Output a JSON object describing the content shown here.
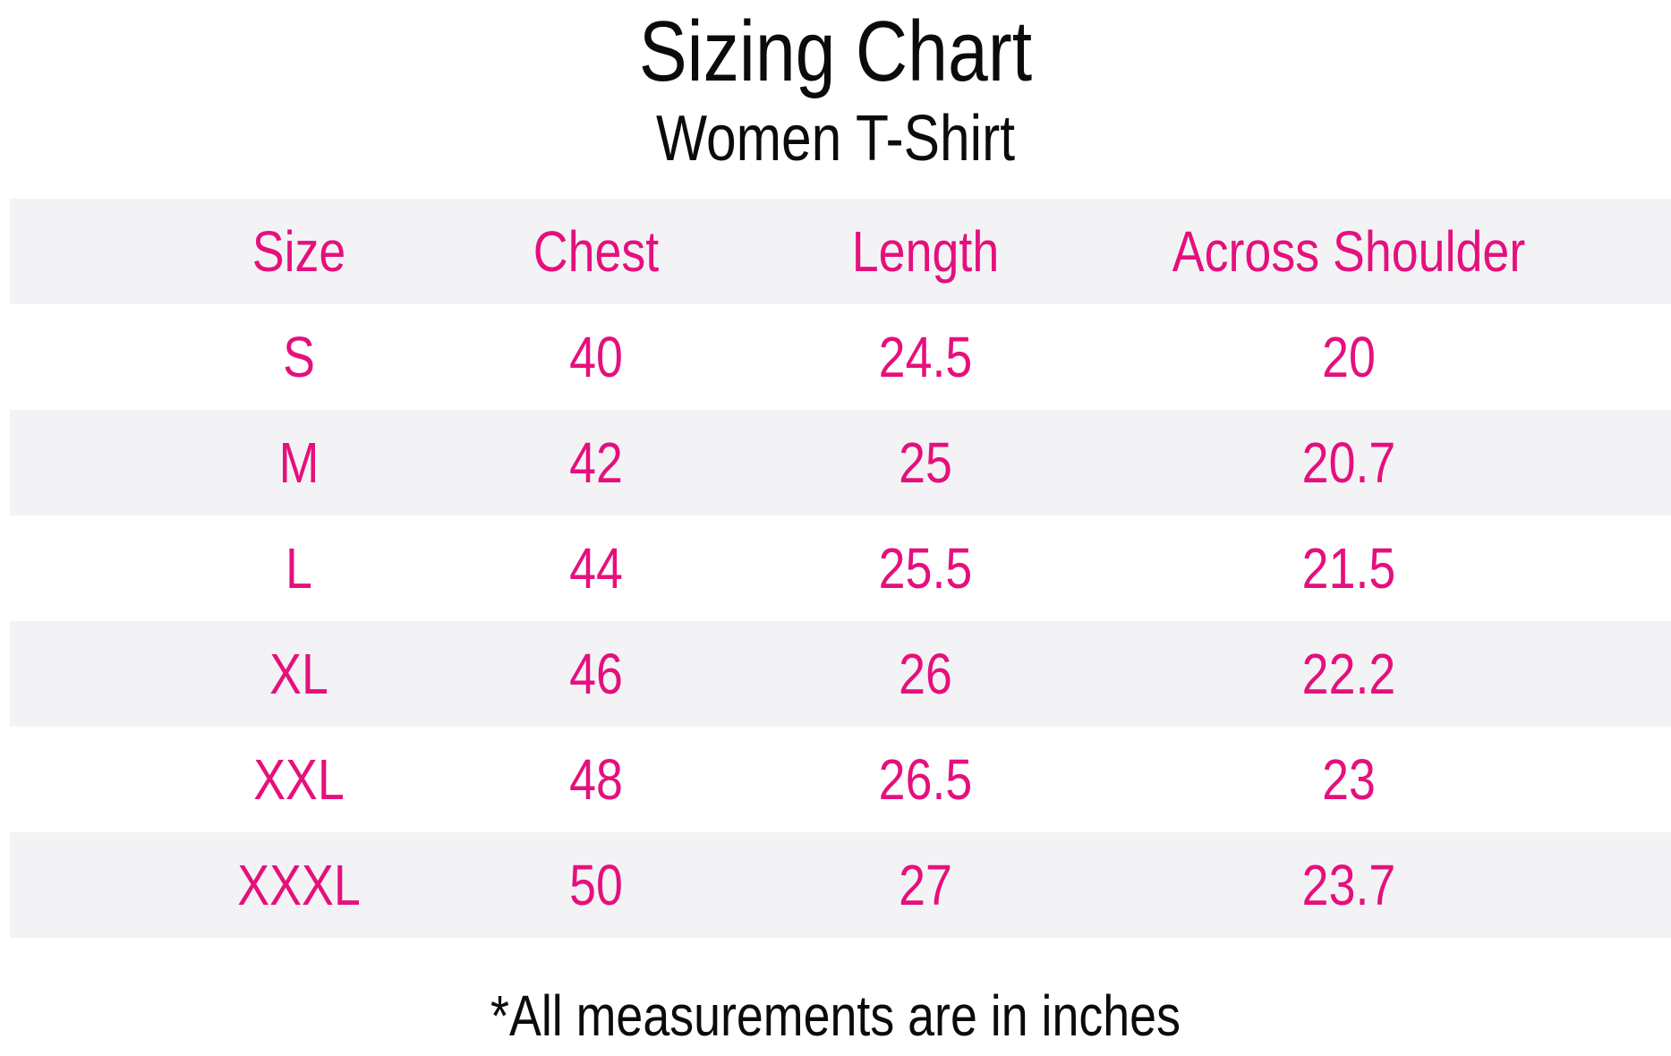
{
  "colors": {
    "accent_pink": "#e5107d",
    "stripe_grey": "#f3f3f5",
    "text_black": "#0b0b0b",
    "background": "#ffffff"
  },
  "chart_data": {
    "type": "table",
    "title": "Sizing Chart",
    "subtitle": "Women T-Shirt",
    "columns": [
      "Size",
      "Chest",
      "Length",
      "Across Shoulder"
    ],
    "rows": [
      [
        "S",
        "40",
        "24.5",
        "20"
      ],
      [
        "M",
        "42",
        "25",
        "20.7"
      ],
      [
        "L",
        "44",
        "25.5",
        "21.5"
      ],
      [
        "XL",
        "46",
        "26",
        "22.2"
      ],
      [
        "XXL",
        "48",
        "26.5",
        "23"
      ],
      [
        "XXXL",
        "50",
        "27",
        "23.7"
      ]
    ],
    "footnote": "*All measurements are in inches",
    "units": "inches",
    "layout": {
      "header_background": "#f3f3f5",
      "row_striping": "alternating grey/white starting with grey header",
      "text_alignment": "center"
    }
  }
}
